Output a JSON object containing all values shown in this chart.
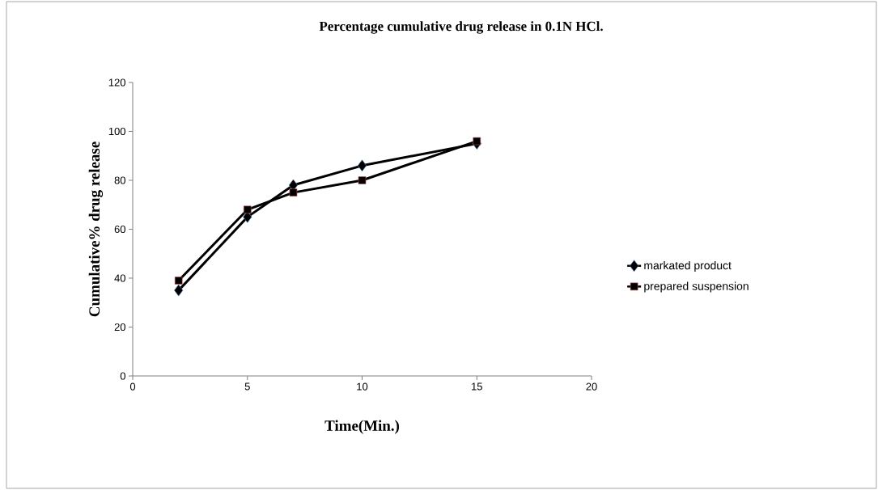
{
  "chart_data": {
    "type": "line",
    "title": "Percentage cumulative drug release in 0.1N HCl.",
    "xlabel": "Time(Min.)",
    "ylabel": "Cumulative% drug release",
    "x": [
      2,
      5,
      7,
      10,
      15
    ],
    "series": [
      {
        "name": "markated product",
        "color": "#000000",
        "marker": "diamond",
        "values": [
          35,
          65,
          78,
          86,
          95
        ]
      },
      {
        "name": "prepared suspension",
        "color": "#000000",
        "marker": "square",
        "values": [
          39,
          68,
          75,
          80,
          96
        ]
      }
    ],
    "xlim": [
      0,
      20
    ],
    "xticks": [
      0,
      5,
      10,
      15,
      20
    ],
    "ylim": [
      0,
      120
    ],
    "yticks": [
      0,
      20,
      40,
      60,
      80,
      100,
      120
    ],
    "grid": false,
    "legend": "right"
  }
}
